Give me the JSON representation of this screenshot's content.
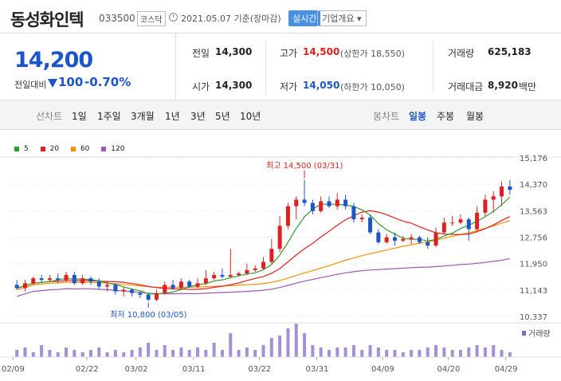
{
  "header": {
    "name": "동성화인텍",
    "code": "033500",
    "market": "코스닥",
    "date": "2021.05.07",
    "basis": "기준(장마감)",
    "realtime_label": "실시간",
    "company_info_label": "기업개요 ▾"
  },
  "summary": {
    "price": "14,200",
    "change_label": "전일대비",
    "change": "100",
    "change_pct": "-0.70%",
    "prev_label": "전일",
    "prev": "14,300",
    "open_label": "시가",
    "open": "14,300",
    "high_label": "고가",
    "high": "14,500",
    "upper_limit": "(상한가 18,550)",
    "low_label": "저가",
    "low": "14,050",
    "lower_limit": "(하한가 10,050)",
    "volume_label": "거래량",
    "volume": "625,183",
    "amount_label": "거래대금",
    "amount": "8,920",
    "amount_unit": "백만"
  },
  "periods": {
    "line_label": "선차트",
    "line_items": [
      "1일",
      "1주일",
      "3개월",
      "1년",
      "3년",
      "5년",
      "10년"
    ],
    "candle_label": "봉차트",
    "candle_items": [
      "일봉",
      "주봉",
      "월봉"
    ],
    "active": "일봉"
  },
  "chart_data": {
    "type": "candlestick",
    "legend": [
      {
        "name": "5",
        "color": "#2ca02c"
      },
      {
        "name": "20",
        "color": "#e02020"
      },
      {
        "name": "60",
        "color": "#ff8c00"
      },
      {
        "name": "120",
        "color": "#9b59b6"
      }
    ],
    "y_ticks": [
      15176,
      14370,
      13563,
      12756,
      11950,
      11143,
      10337
    ],
    "ylim": [
      10337,
      15176
    ],
    "x_labels": [
      "02/09",
      "02/22",
      "03/02",
      "03/11",
      "03/22",
      "03/31",
      "04/09",
      "04/20",
      "04/29"
    ],
    "high_annotation": "최고 14,500 (03/31)",
    "low_annotation": "최저 10,800 (03/05)",
    "volume_label": "거래량",
    "candles": [
      [
        11300,
        11200,
        11450,
        11150
      ],
      [
        11200,
        11350,
        11450,
        11100
      ],
      [
        11350,
        11500,
        11550,
        11300
      ],
      [
        11500,
        11450,
        11600,
        11350
      ],
      [
        11450,
        11500,
        11600,
        11400
      ],
      [
        11500,
        11450,
        11650,
        11350
      ],
      [
        11450,
        11600,
        11700,
        11400
      ],
      [
        11600,
        11350,
        11700,
        11300
      ],
      [
        11350,
        11500,
        11600,
        11300
      ],
      [
        11500,
        11400,
        11550,
        11300
      ],
      [
        11400,
        11250,
        11500,
        11150
      ],
      [
        11250,
        11300,
        11400,
        11100
      ],
      [
        11300,
        11100,
        11350,
        11000
      ],
      [
        11100,
        11150,
        11250,
        10950
      ],
      [
        11150,
        11050,
        11200,
        10950
      ],
      [
        11050,
        11000,
        11100,
        10900
      ],
      [
        11000,
        10850,
        11050,
        10800
      ],
      [
        10850,
        11050,
        11150,
        10800
      ],
      [
        11050,
        11300,
        11400,
        11000
      ],
      [
        11300,
        11200,
        11450,
        11150
      ],
      [
        11200,
        11400,
        11500,
        11150
      ],
      [
        11400,
        11250,
        11450,
        11200
      ],
      [
        11250,
        11350,
        11500,
        11200
      ],
      [
        11350,
        11500,
        11750,
        11300
      ],
      [
        11500,
        11600,
        11700,
        11450
      ],
      [
        11600,
        11550,
        11800,
        11500
      ],
      [
        11550,
        11600,
        12400,
        11500
      ],
      [
        11600,
        11650,
        11700,
        11550
      ],
      [
        11650,
        11750,
        11950,
        11600
      ],
      [
        11750,
        11800,
        11900,
        11700
      ],
      [
        11800,
        12000,
        12150,
        11750
      ],
      [
        12000,
        12400,
        12700,
        11950
      ],
      [
        12400,
        13100,
        13400,
        12300
      ],
      [
        13100,
        13700,
        13800,
        13000
      ],
      [
        13700,
        13900,
        14000,
        13300
      ],
      [
        13900,
        13800,
        14500,
        13700
      ],
      [
        13800,
        13550,
        13900,
        13450
      ],
      [
        13550,
        13850,
        14000,
        13500
      ],
      [
        13850,
        13700,
        14000,
        13650
      ],
      [
        13700,
        13900,
        14100,
        13600
      ],
      [
        13900,
        13700,
        14050,
        13600
      ],
      [
        13700,
        13300,
        13800,
        13200
      ],
      [
        13300,
        13350,
        13450,
        13200
      ],
      [
        13350,
        12900,
        13450,
        12850
      ],
      [
        12900,
        12600,
        13000,
        12550
      ],
      [
        12600,
        12750,
        12850,
        12550
      ],
      [
        12750,
        12650,
        12900,
        12500
      ],
      [
        12650,
        12700,
        12800,
        12600
      ],
      [
        12700,
        12750,
        12850,
        12550
      ],
      [
        12750,
        12600,
        12800,
        12550
      ],
      [
        12600,
        12500,
        12750,
        12400
      ],
      [
        12500,
        12900,
        13050,
        12450
      ],
      [
        12900,
        13200,
        13350,
        12850
      ],
      [
        13200,
        13200,
        13400,
        13100
      ],
      [
        13200,
        13300,
        13450,
        13150
      ],
      [
        13300,
        13000,
        13350,
        12650
      ],
      [
        13000,
        13500,
        13700,
        12950
      ],
      [
        13500,
        13900,
        14050,
        13400
      ],
      [
        13900,
        14000,
        14150,
        13500
      ],
      [
        14000,
        14300,
        14450,
        13700
      ],
      [
        14300,
        14200,
        14500,
        14050
      ]
    ]
  }
}
